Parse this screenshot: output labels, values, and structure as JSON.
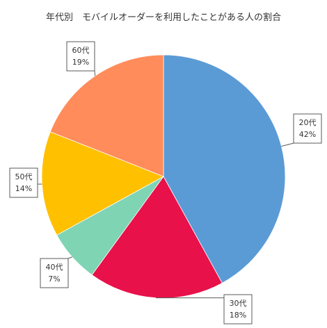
{
  "chart_data": {
    "type": "pie",
    "title": "年代別　モバイルオーダーを利用したことがある人の割合",
    "categories": [
      "20代",
      "30代",
      "40代",
      "50代",
      "60代"
    ],
    "values": [
      42,
      18,
      7,
      14,
      19
    ],
    "value_labels": [
      "42%",
      "18%",
      "7%",
      "14%",
      "19%"
    ],
    "colors": [
      "#5b9bd5",
      "#e8114a",
      "#7fd4b4",
      "#ffc000",
      "#ff8c5a"
    ],
    "start_angle": "12 o'clock",
    "direction": "clockwise",
    "legend": "none",
    "data_labels": "callouts"
  }
}
